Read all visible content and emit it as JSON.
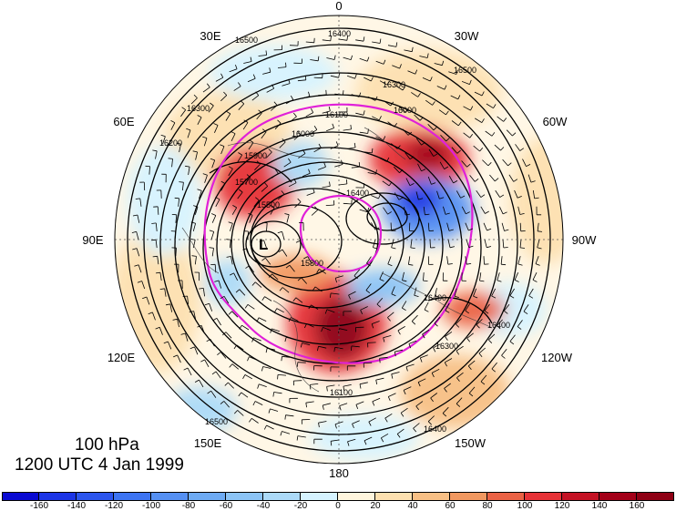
{
  "map": {
    "projection": "north-polar-stereographic",
    "level_label": "100 hPa",
    "time_label": "1200 UTC 4 Jan 1999",
    "low_marker": "L",
    "longitude_labels": [
      "0",
      "30W",
      "60W",
      "90W",
      "120W",
      "150W",
      "180",
      "150E",
      "120E",
      "90E",
      "60E",
      "30E"
    ],
    "contour_labels": [
      "16500",
      "16400",
      "16300",
      "16200",
      "16100",
      "16000",
      "15900",
      "15800",
      "15700",
      "15600",
      "15500"
    ],
    "colors": {
      "negative_strong": "#0a0ad2",
      "negative_light": "#d6f3ff",
      "neutral": "#fff7e6",
      "positive_light": "#fde0b0",
      "positive_strong": "#8e0014",
      "contour_highlight": "#e020d8"
    }
  },
  "colorbar": {
    "tick_labels": [
      "-160",
      "-140",
      "-120",
      "-100",
      "-80",
      "-60",
      "-40",
      "-20",
      "0",
      "20",
      "40",
      "60",
      "80",
      "100",
      "120",
      "140",
      "160"
    ],
    "colors": [
      "#0a0ad2",
      "#1c35e6",
      "#2c55ee",
      "#3d74f2",
      "#5590f3",
      "#6eabf4",
      "#8cc4f6",
      "#acdaf8",
      "#d6f3ff",
      "#fff5dd",
      "#fde0b0",
      "#f7bf85",
      "#f19860",
      "#ea6245",
      "#e63237",
      "#c41224",
      "#a30018",
      "#8e0014"
    ]
  }
}
